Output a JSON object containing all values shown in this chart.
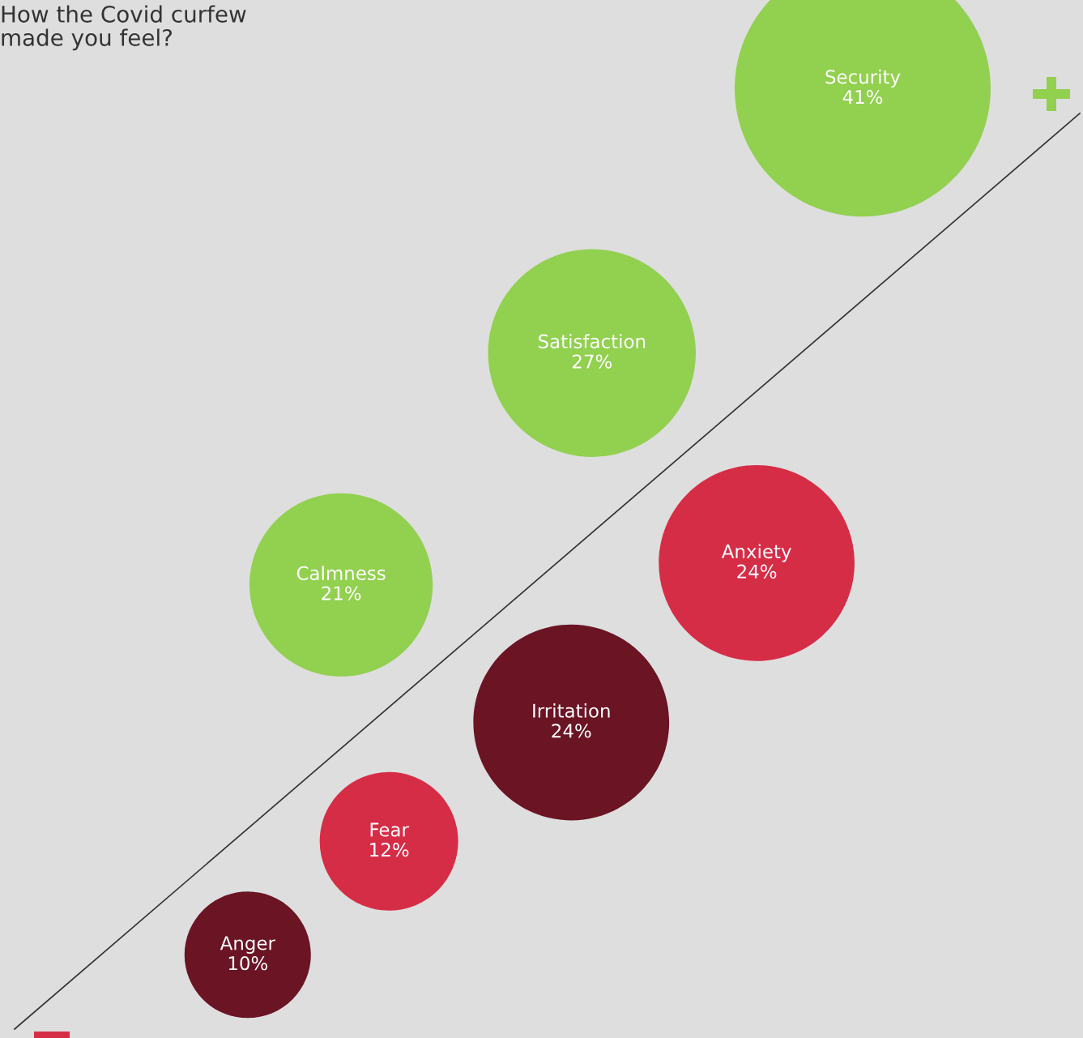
{
  "chart_data": {
    "type": "other",
    "title": "How the Covid curfew\nmade you feel?",
    "categories": [
      "Anger",
      "Fear",
      "Calmness",
      "Irritation",
      "Anxiety",
      "Satisfaction",
      "Security"
    ],
    "series": [
      {
        "values": [
          null,
          null,
          21,
          null,
          null,
          27,
          41
        ],
        "colors": [
          null,
          null,
          "#92d050",
          null,
          null,
          "#92d050",
          "#92d050"
        ],
        "value_labels": [
          null,
          null,
          "21%",
          null,
          null,
          "27%",
          "41%"
        ]
      },
      {
        "values": [
          10,
          12,
          null,
          24,
          24,
          null,
          null
        ],
        "colors": [
          "#6b1424",
          "#d62d47",
          null,
          "#6b1424",
          "#d62d47",
          null,
          null
        ],
        "value_labels": [
          "10%",
          "12%",
          null,
          "24%",
          "24%",
          null,
          null
        ]
      }
    ]
  }
}
